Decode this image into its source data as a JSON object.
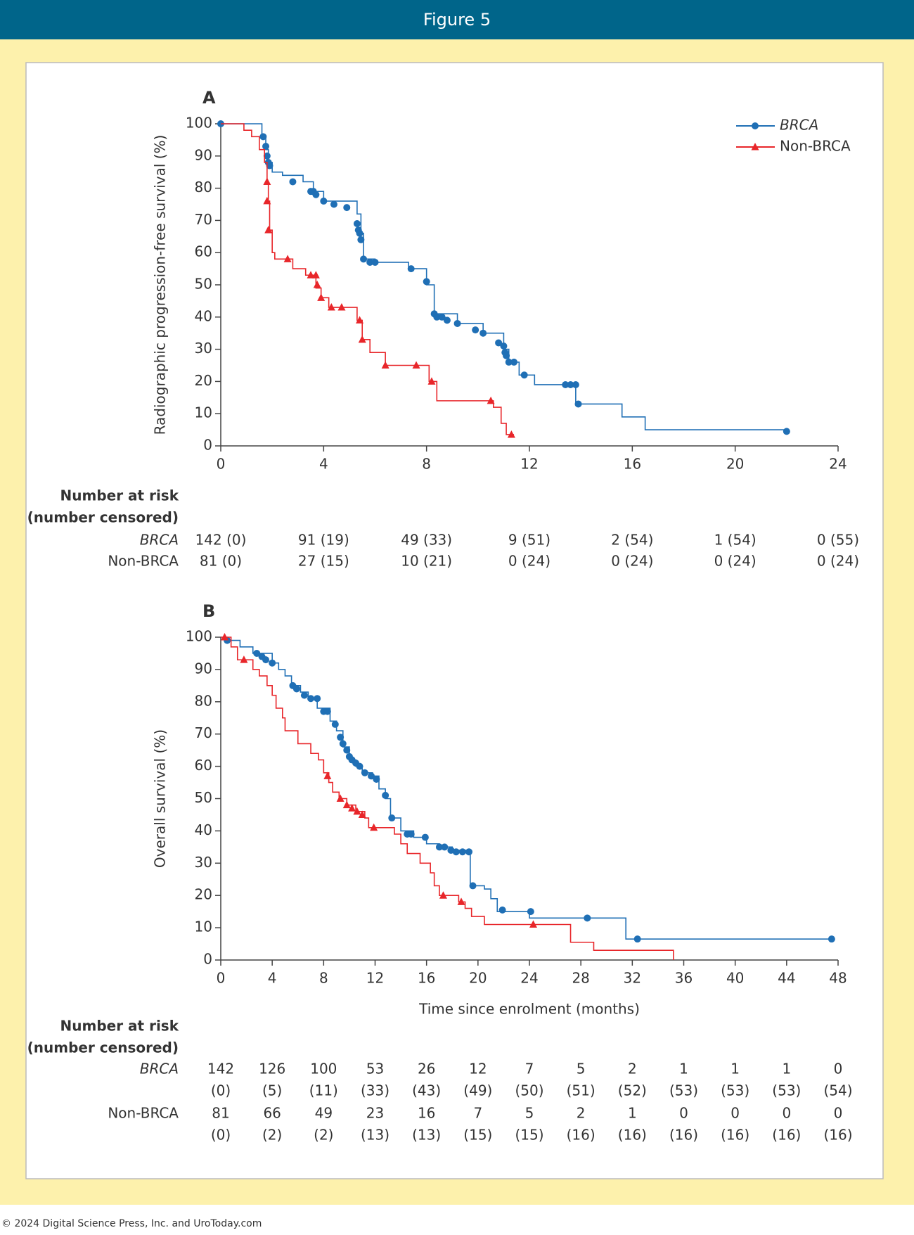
{
  "header": {
    "title": "Figure 5"
  },
  "footer": "© 2024 Digital Science Press, Inc. and UroToday.com",
  "chart_data": [
    {
      "type": "line",
      "panel": "A",
      "ylabel": "Radiographic progression-free survival (%)",
      "xlim": [
        0,
        24
      ],
      "ylim": [
        0,
        100
      ],
      "xticks": [
        0,
        4,
        8,
        12,
        16,
        20,
        24
      ],
      "yticks": [
        0,
        10,
        20,
        30,
        40,
        50,
        60,
        70,
        80,
        90,
        100
      ],
      "legend": "upper right",
      "series": [
        {
          "name": "BRCA",
          "color": "#1f6fb5",
          "marker": "circle",
          "x": [
            0,
            1.6,
            1.6,
            1.75,
            1.75,
            1.85,
            1.85,
            2,
            2,
            2.4,
            2.4,
            3.2,
            3.2,
            3.6,
            3.6,
            4,
            4,
            5.3,
            5.3,
            5.45,
            5.45,
            5.55,
            5.55,
            6,
            6,
            7.3,
            7.3,
            8,
            8,
            8.3,
            8.3,
            9.2,
            9.2,
            10.2,
            10.2,
            11,
            11,
            11.2,
            11.2,
            11.6,
            11.6,
            12.2,
            12.2,
            13.8,
            13.8,
            15.6,
            15.6,
            16.5,
            16.5,
            22
          ],
          "values": [
            100,
            100,
            96,
            96,
            92,
            92,
            88,
            88,
            85,
            85,
            84,
            84,
            82,
            82,
            79,
            79,
            76,
            76,
            72,
            72,
            66,
            66,
            58,
            58,
            57,
            57,
            55,
            55,
            50,
            50,
            41,
            41,
            38,
            38,
            35,
            35,
            30,
            30,
            26,
            26,
            22,
            22,
            19,
            19,
            13,
            13,
            9,
            9,
            5,
            5
          ],
          "censored_x": [
            0,
            1.65,
            1.75,
            1.8,
            1.85,
            1.9,
            2.8,
            3.5,
            3.6,
            3.7,
            4,
            4.4,
            4.9,
            5.3,
            5.35,
            5.4,
            5.45,
            5.55,
            5.8,
            6,
            7.4,
            8,
            8.3,
            8.4,
            8.6,
            8.8,
            9.2,
            9.9,
            10.2,
            10.8,
            11,
            11.05,
            11.1,
            11.2,
            11.4,
            11.8,
            13.4,
            13.6,
            13.8,
            13.9,
            22
          ],
          "censored_values": [
            100,
            96,
            93,
            90,
            88,
            87,
            82,
            79,
            79,
            78,
            76,
            75,
            74,
            69,
            67,
            66,
            64,
            58,
            57,
            57,
            55,
            51,
            41,
            40,
            40,
            39,
            38,
            36,
            35,
            32,
            31,
            29,
            28,
            26,
            26,
            22,
            19,
            19,
            19,
            13,
            4.5
          ]
        },
        {
          "name": "Non-BRCA",
          "color": "#e8262a",
          "marker": "triangle",
          "x": [
            0,
            0.9,
            0.9,
            1.2,
            1.2,
            1.5,
            1.5,
            1.7,
            1.7,
            1.8,
            1.8,
            1.85,
            1.85,
            1.9,
            1.9,
            2,
            2,
            2.1,
            2.1,
            2.8,
            2.8,
            3.3,
            3.3,
            3.7,
            3.7,
            3.9,
            3.9,
            4.2,
            4.2,
            5.3,
            5.3,
            5.5,
            5.5,
            5.8,
            5.8,
            6.4,
            6.4,
            8.1,
            8.1,
            8.4,
            8.4,
            10.6,
            10.6,
            10.9,
            10.9,
            11.1,
            11.1,
            11.4
          ],
          "values": [
            100,
            100,
            98,
            98,
            96,
            96,
            92,
            92,
            88,
            88,
            82,
            82,
            76,
            76,
            67,
            67,
            60,
            60,
            58,
            58,
            55,
            55,
            53,
            53,
            49,
            49,
            46,
            46,
            43,
            43,
            39,
            39,
            33,
            33,
            29,
            29,
            25,
            25,
            20,
            20,
            14,
            14,
            12,
            12,
            7,
            7,
            3.5,
            3.5
          ],
          "censored_x": [
            1.8,
            1.8,
            1.85,
            2.6,
            3.5,
            3.7,
            3.75,
            3.9,
            4.3,
            4.7,
            5.4,
            5.5,
            6.4,
            7.6,
            8.2,
            10.5,
            11.3
          ],
          "censored_values": [
            82,
            76,
            67,
            58,
            53,
            53,
            50,
            46,
            43,
            43,
            39,
            33,
            25,
            25,
            20,
            14,
            3.5
          ]
        }
      ],
      "risk_table": {
        "title": "Number at risk",
        "subtitle": "(number censored)",
        "rows": [
          {
            "label": "BRCA",
            "values": [
              "142 (0)",
              "91 (19)",
              "49 (33)",
              "9 (51)",
              "2 (54)",
              "1 (54)",
              "0 (55)"
            ]
          },
          {
            "label": "Non-BRCA",
            "values": [
              "81 (0)",
              "27 (15)",
              "10 (21)",
              "0 (24)",
              "0 (24)",
              "0 (24)",
              "0 (24)"
            ]
          }
        ]
      }
    },
    {
      "type": "line",
      "panel": "B",
      "ylabel": "Overall survival (%)",
      "xlabel": "Time since enrolment (months)",
      "xlim": [
        0,
        48
      ],
      "ylim": [
        0,
        100
      ],
      "xticks": [
        0,
        4,
        8,
        12,
        16,
        20,
        24,
        28,
        32,
        36,
        40,
        44,
        48
      ],
      "yticks": [
        0,
        10,
        20,
        30,
        40,
        50,
        60,
        70,
        80,
        90,
        100
      ],
      "series": [
        {
          "name": "BRCA",
          "color": "#1f6fb5",
          "marker": "circle",
          "x": [
            0,
            0.5,
            0.5,
            1.5,
            1.5,
            2.5,
            2.5,
            4,
            4,
            4.5,
            4.5,
            5,
            5,
            5.5,
            5.5,
            6.2,
            6.2,
            6.8,
            6.8,
            7.5,
            7.5,
            8.5,
            8.5,
            9,
            9,
            9.5,
            9.5,
            10,
            10,
            10.5,
            10.5,
            11,
            11,
            11.8,
            11.8,
            12.3,
            12.3,
            12.8,
            12.8,
            13.2,
            13.2,
            14,
            14,
            15,
            15,
            16,
            16,
            17,
            17,
            18,
            18,
            19.4,
            19.4,
            20.5,
            20.5,
            21,
            21,
            21.5,
            21.5,
            24,
            24,
            31.5,
            31.5,
            47.5
          ],
          "values": [
            100,
            100,
            99,
            99,
            97,
            97,
            95,
            95,
            92,
            92,
            90,
            90,
            88,
            88,
            85,
            85,
            83,
            83,
            81,
            81,
            78,
            78,
            74,
            74,
            71,
            71,
            66,
            66,
            62,
            62,
            60,
            60,
            58,
            58,
            57,
            57,
            53,
            53,
            50,
            50,
            44,
            44,
            40,
            40,
            38,
            38,
            36,
            36,
            35,
            35,
            34,
            34,
            23,
            23,
            22,
            22,
            19,
            19,
            15,
            15,
            13,
            13,
            6.5,
            6.5
          ],
          "censored_x": [
            0.5,
            2.8,
            3.2,
            3.5,
            4,
            5.6,
            5.9,
            6.5,
            7,
            7.5,
            8,
            8.3,
            8.9,
            9.3,
            9.5,
            9.8,
            10,
            10.2,
            10.5,
            10.8,
            11.2,
            11.7,
            12.1,
            12.8,
            13.3,
            14.5,
            14.8,
            15.9,
            17,
            17.4,
            17.9,
            18.3,
            18.8,
            19.3,
            19.6,
            21.9,
            24.1,
            28.5,
            32.4,
            47.5
          ],
          "censored_values": [
            99,
            95,
            94,
            93,
            92,
            85,
            84,
            82,
            81,
            81,
            77,
            77,
            73,
            69,
            67,
            65,
            63,
            62,
            61,
            60,
            58,
            57,
            56,
            51,
            44,
            39,
            39,
            38,
            35,
            35,
            34,
            33.5,
            33.5,
            33.5,
            23,
            15.5,
            15,
            13,
            6.5,
            6.5
          ]
        },
        {
          "name": "Non-BRCA",
          "color": "#e8262a",
          "marker": "triangle",
          "x": [
            0,
            0.8,
            0.8,
            1.3,
            1.3,
            2.5,
            2.5,
            3,
            3,
            3.6,
            3.6,
            4,
            4,
            4.3,
            4.3,
            4.8,
            4.8,
            5,
            5,
            6,
            6,
            7,
            7,
            7.6,
            7.6,
            8,
            8,
            8.4,
            8.4,
            8.7,
            8.7,
            9.2,
            9.2,
            9.8,
            9.8,
            10.5,
            10.5,
            11.2,
            11.2,
            11.5,
            11.5,
            13.5,
            13.5,
            14,
            14,
            14.5,
            14.5,
            15.5,
            15.5,
            16.3,
            16.3,
            16.6,
            16.6,
            17,
            17,
            18.5,
            18.5,
            19,
            19,
            19.5,
            19.5,
            20.5,
            20.5,
            27.2,
            27.2,
            29,
            29,
            35.2,
            35.2
          ],
          "values": [
            100,
            100,
            97,
            97,
            93,
            93,
            90,
            90,
            88,
            88,
            85,
            85,
            82,
            82,
            78,
            78,
            75,
            75,
            71,
            71,
            67,
            67,
            64,
            64,
            62,
            62,
            58,
            58,
            55,
            55,
            52,
            52,
            50,
            50,
            48,
            48,
            46,
            46,
            44,
            44,
            41,
            41,
            39,
            39,
            36,
            36,
            33,
            33,
            30,
            30,
            27,
            27,
            23,
            23,
            20,
            20,
            18,
            18,
            16,
            16,
            13.5,
            13.5,
            11,
            11,
            5.5,
            5.5,
            3,
            3,
            0
          ],
          "censored_x": [
            0.3,
            1.8,
            8.3,
            9.3,
            9.8,
            10.2,
            10.6,
            11,
            11.9,
            17.3,
            18.7,
            24.3
          ],
          "censored_values": [
            100,
            93,
            57,
            50,
            48,
            47,
            46,
            45,
            41,
            20,
            18,
            11
          ]
        }
      ],
      "risk_table": {
        "title": "Number at risk",
        "subtitle": "(number censored)",
        "rows": [
          {
            "label": "BRCA",
            "at_risk": [
              142,
              126,
              100,
              53,
              26,
              12,
              7,
              5,
              2,
              1,
              1,
              1,
              0
            ],
            "censored": [
              "(0)",
              "(5)",
              "(11)",
              "(33)",
              "(43)",
              "(49)",
              "(50)",
              "(51)",
              "(52)",
              "(53)",
              "(53)",
              "(53)",
              "(54)"
            ]
          },
          {
            "label": "Non-BRCA",
            "at_risk": [
              81,
              66,
              49,
              23,
              16,
              7,
              5,
              2,
              1,
              0,
              0,
              0,
              0
            ],
            "censored": [
              "(0)",
              "(2)",
              "(2)",
              "(13)",
              "(13)",
              "(15)",
              "(15)",
              "(16)",
              "(16)",
              "(16)",
              "(16)",
              "(16)",
              "(16)"
            ]
          }
        ]
      }
    }
  ]
}
